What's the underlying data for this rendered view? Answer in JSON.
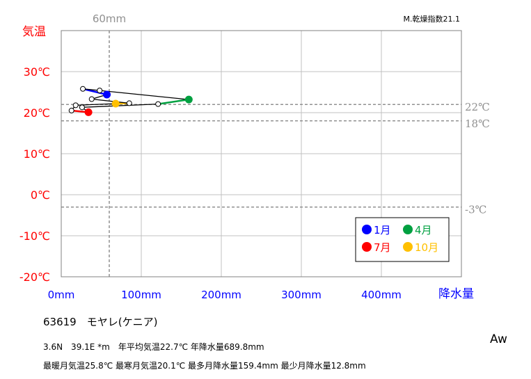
{
  "chart_data": {
    "type": "line",
    "xlabel": "降水量",
    "ylabel": "気温",
    "xlim": [
      0,
      500
    ],
    "ylim": [
      -20,
      40
    ],
    "x_ticks": [
      {
        "value": 0,
        "label": "0mm"
      },
      {
        "value": 100,
        "label": "100mm"
      },
      {
        "value": 200,
        "label": "200mm"
      },
      {
        "value": 300,
        "label": "300mm"
      },
      {
        "value": 400,
        "label": "400mm"
      }
    ],
    "y_ticks": [
      {
        "value": 30,
        "label": "30℃"
      },
      {
        "value": 20,
        "label": "20℃"
      },
      {
        "value": 10,
        "label": "10℃"
      },
      {
        "value": 0,
        "label": "0℃"
      },
      {
        "value": -10,
        "label": "-10℃"
      },
      {
        "value": -20,
        "label": "-20℃"
      }
    ],
    "reference_lines": [
      {
        "axis": "x",
        "value": 60,
        "label": "60mm"
      },
      {
        "axis": "y",
        "value": 22,
        "label": "22℃"
      },
      {
        "axis": "y",
        "value": 18,
        "label": "18℃"
      },
      {
        "axis": "y",
        "value": -3,
        "label": "-3℃"
      }
    ],
    "months": [
      {
        "month": 1,
        "precip": 57,
        "temp": 24.4
      },
      {
        "month": 2,
        "precip": 27,
        "temp": 25.8
      },
      {
        "month": 3,
        "precip": 48,
        "temp": 25.4
      },
      {
        "month": 4,
        "precip": 159.4,
        "temp": 23.2
      },
      {
        "month": 5,
        "precip": 121,
        "temp": 22.1
      },
      {
        "month": 6,
        "precip": 26,
        "temp": 21.3
      },
      {
        "month": 7,
        "precip": 34,
        "temp": 20.1
      },
      {
        "month": 8,
        "precip": 12.8,
        "temp": 20.5
      },
      {
        "month": 9,
        "precip": 18,
        "temp": 21.8
      },
      {
        "month": 10,
        "precip": 68,
        "temp": 22.2
      },
      {
        "month": 11,
        "precip": 85,
        "temp": 22.3
      },
      {
        "month": 12,
        "precip": 38,
        "temp": 23.3
      }
    ],
    "highlight": [
      {
        "month": 1,
        "color": "#0000ff",
        "label": "1月"
      },
      {
        "month": 4,
        "color": "#00a040",
        "label": "4月"
      },
      {
        "month": 7,
        "color": "#ff0000",
        "label": "7月"
      },
      {
        "month": 10,
        "color": "#ffc000",
        "label": "10月"
      }
    ],
    "legend_position": "bottom-right",
    "grid": true
  },
  "aridity_index": "M.乾燥指数21.1",
  "station_line": "63619　モヤレ(ケニア)",
  "stats_line1": "3.6N　39.1E *m　年平均気温22.7℃ 年降水量689.8mm",
  "stats_line2": "最暖月気温25.8℃ 最寒月気温20.1℃ 最多月降水量159.4mm 最少月降水量12.8mm",
  "climate_class": "Aw",
  "colors": {
    "temp_axis": "#ff0000",
    "precip_axis": "#0000ff",
    "grid": "#c0c0c0",
    "reference": "#909090"
  }
}
